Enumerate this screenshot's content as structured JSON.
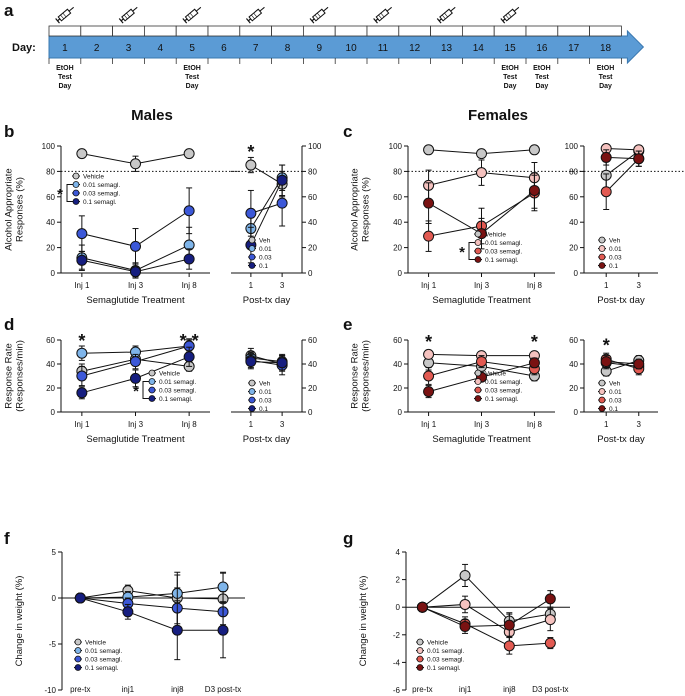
{
  "titles": {
    "males": "Males",
    "females": "Females"
  },
  "timeline": {
    "panel": "a",
    "label": "Day:",
    "days": [
      "1",
      "2",
      "3",
      "4",
      "5",
      "6",
      "7",
      "8",
      "9",
      "10",
      "11",
      "12",
      "13",
      "14",
      "15",
      "16",
      "17",
      "18"
    ],
    "injection_days": [
      "1",
      "3",
      "5",
      "7",
      "9",
      "11",
      "13",
      "15"
    ],
    "test_days": [
      "1",
      "5",
      "15",
      "16",
      "18"
    ],
    "test_label_lines": [
      "EtOH",
      "Test",
      "Day"
    ],
    "syringe_icon": "syringe-icon",
    "bar_color": "#5b9bd5",
    "bar_stroke": "#3a78b0"
  },
  "colors": {
    "male": [
      "#c8c8c8",
      "#7fb5ea",
      "#3c58d8",
      "#161e80"
    ],
    "female": [
      "#c8c8c8",
      "#f5c2bf",
      "#e25a52",
      "#7a1212"
    ]
  },
  "chart_data": [
    {
      "panel": "b",
      "type": "line",
      "sex": "male",
      "measure": "appropriate",
      "phase": "treatment",
      "ylabel_lines": [
        "Alcohol Appropriate",
        "Responses (%)"
      ],
      "xlabel": "Semaglutide Treatment",
      "categories": [
        "Inj 1",
        "Inj 3",
        "Inj 8"
      ],
      "ylim": [
        0,
        100
      ],
      "yticks": [
        "0",
        "20",
        "40",
        "60",
        "80",
        "100"
      ],
      "reference_line": 80,
      "significance": {
        "bracket": "*"
      },
      "legend": [
        "Vehicle",
        "0.01 semagl.",
        "0.03 semagl.",
        "0.1 semagl."
      ],
      "series": [
        {
          "values": [
            94,
            86,
            94
          ],
          "err": [
            3,
            6,
            3
          ]
        },
        {
          "values": [
            12,
            2,
            22
          ],
          "err": [
            10,
            6,
            14
          ]
        },
        {
          "values": [
            31,
            21,
            49
          ],
          "err": [
            14,
            14,
            18
          ]
        },
        {
          "values": [
            10,
            1,
            11
          ],
          "err": [
            7,
            4,
            8
          ]
        }
      ]
    },
    {
      "panel": "b2",
      "type": "line",
      "sex": "male",
      "measure": "appropriate",
      "phase": "post",
      "xlabel": "Post-tx day",
      "categories": [
        "1",
        "3"
      ],
      "ylim": [
        0,
        100
      ],
      "yticks": [
        "0",
        "20",
        "40",
        "60",
        "80",
        "100"
      ],
      "reference_line": 80,
      "markers": [
        {
          "text": "*",
          "at": "1",
          "y": 97,
          "color": "#3c58d8"
        }
      ],
      "legend": [
        "Veh",
        "0.01",
        "0.03",
        "0.1"
      ],
      "series": [
        {
          "values": [
            85,
            70
          ],
          "err": [
            6,
            10
          ]
        },
        {
          "values": [
            35,
            75
          ],
          "err": [
            14,
            10
          ]
        },
        {
          "values": [
            47,
            55
          ],
          "err": [
            18,
            18
          ]
        },
        {
          "values": [
            22,
            73
          ],
          "err": [
            14,
            12
          ]
        }
      ]
    },
    {
      "panel": "c",
      "type": "line",
      "sex": "female",
      "measure": "appropriate",
      "phase": "treatment",
      "ylabel_lines": [
        "Alcohol Appropriate",
        "Responses (%)"
      ],
      "xlabel": "Semaglutide Treatment",
      "categories": [
        "Inj 1",
        "Inj 3",
        "Inj 8"
      ],
      "ylim": [
        0,
        100
      ],
      "yticks": [
        "0",
        "20",
        "40",
        "60",
        "80",
        "100"
      ],
      "reference_line": 80,
      "significance": {
        "bracket": "*"
      },
      "legend": [
        "Vehicle",
        "0.01 semagl.",
        "0.03 semagl.",
        "0.1 semagl."
      ],
      "series": [
        {
          "values": [
            97,
            94,
            97
          ],
          "err": [
            2,
            3,
            2
          ]
        },
        {
          "values": [
            69,
            79,
            75
          ],
          "err": [
            12,
            10,
            12
          ]
        },
        {
          "values": [
            29,
            37,
            63
          ],
          "err": [
            12,
            14,
            14
          ]
        },
        {
          "values": [
            55,
            31,
            65
          ],
          "err": [
            16,
            12,
            14
          ]
        }
      ]
    },
    {
      "panel": "c2",
      "type": "line",
      "sex": "female",
      "measure": "appropriate",
      "phase": "post",
      "xlabel": "Post-tx day",
      "categories": [
        "1",
        "3"
      ],
      "ylim": [
        0,
        100
      ],
      "yticks": [
        "0",
        "20",
        "40",
        "60",
        "80",
        "100"
      ],
      "reference_line": 80,
      "legend": [
        "Veh",
        "0.01",
        "0.03",
        "0.1"
      ],
      "series": [
        {
          "values": [
            77,
            96
          ],
          "err": [
            12,
            3
          ]
        },
        {
          "values": [
            98,
            97
          ],
          "err": [
            3,
            3
          ]
        },
        {
          "values": [
            64,
            90
          ],
          "err": [
            14,
            6
          ]
        },
        {
          "values": [
            91,
            90
          ],
          "err": [
            6,
            6
          ]
        }
      ]
    },
    {
      "panel": "d",
      "type": "line",
      "sex": "male",
      "measure": "rate",
      "phase": "treatment",
      "ylabel_lines": [
        "Response Rate",
        "(Responses/min)"
      ],
      "xlabel": "Semaglutide Treatment",
      "categories": [
        "Inj 1",
        "Inj 3",
        "Inj 8"
      ],
      "ylim": [
        0,
        60
      ],
      "yticks": [
        "0",
        "20",
        "40",
        "60"
      ],
      "significance": {
        "bracket": "*"
      },
      "markers": [
        {
          "text": "*",
          "at": "Inj 1",
          "y": 61,
          "color": "#161e80"
        },
        {
          "text": "*",
          "at": "Inj 8",
          "y": 61,
          "color": "#7fb5ea",
          "dx": -6
        },
        {
          "text": "*",
          "at": "Inj 8",
          "y": 61,
          "color": "#3c58d8",
          "dx": 6
        }
      ],
      "legend": [
        "Vehicle",
        "0.01 semagl.",
        "0.03 semagl.",
        "0.1 semagl."
      ],
      "series": [
        {
          "values": [
            34,
            44,
            38
          ],
          "err": [
            6,
            5,
            4
          ]
        },
        {
          "values": [
            49,
            50,
            55
          ],
          "err": [
            6,
            5,
            5
          ]
        },
        {
          "values": [
            30,
            42,
            55
          ],
          "err": [
            8,
            6,
            6
          ]
        },
        {
          "values": [
            16,
            28,
            46
          ],
          "err": [
            5,
            7,
            8
          ]
        }
      ]
    },
    {
      "panel": "d2",
      "type": "line",
      "sex": "male",
      "measure": "rate",
      "phase": "post",
      "xlabel": "Post-tx day",
      "categories": [
        "1",
        "3"
      ],
      "ylim": [
        0,
        60
      ],
      "yticks": [
        "0",
        "20",
        "40",
        "60"
      ],
      "legend": [
        "Veh",
        "0.01",
        "0.03",
        "0.1"
      ],
      "series": [
        {
          "values": [
            47,
            40
          ],
          "err": [
            6,
            6
          ]
        },
        {
          "values": [
            45,
            42
          ],
          "err": [
            5,
            6
          ]
        },
        {
          "values": [
            43,
            39
          ],
          "err": [
            6,
            8
          ]
        },
        {
          "values": [
            42,
            41
          ],
          "err": [
            6,
            6
          ]
        }
      ]
    },
    {
      "panel": "e",
      "type": "line",
      "sex": "female",
      "measure": "rate",
      "phase": "treatment",
      "ylabel_lines": [
        "Response Rate",
        "(Responses/min)"
      ],
      "xlabel": "Semaglutide Treatment",
      "categories": [
        "Inj 1",
        "Inj 3",
        "Inj 8"
      ],
      "ylim": [
        0,
        60
      ],
      "yticks": [
        "0",
        "20",
        "40",
        "60"
      ],
      "markers": [
        {
          "text": "*",
          "at": "Inj 1",
          "y": 60,
          "color": "#7a1212"
        },
        {
          "text": "*",
          "at": "Inj 8",
          "y": 60,
          "color": "#f5c2bf"
        }
      ],
      "legend": [
        "Vehicle",
        "0.01 semagl.",
        "0.03 semagl.",
        "0.1 semagl."
      ],
      "series": [
        {
          "values": [
            41,
            38,
            30
          ],
          "err": [
            6,
            4,
            4
          ]
        },
        {
          "values": [
            48,
            47,
            47
          ],
          "err": [
            3,
            3,
            3
          ]
        },
        {
          "values": [
            30,
            42,
            36
          ],
          "err": [
            7,
            5,
            5
          ]
        },
        {
          "values": [
            17,
            29,
            41
          ],
          "err": [
            5,
            3,
            4
          ]
        }
      ]
    },
    {
      "panel": "e2",
      "type": "line",
      "sex": "female",
      "measure": "rate",
      "phase": "post",
      "xlabel": "Post-tx day",
      "categories": [
        "1",
        "3"
      ],
      "ylim": [
        0,
        60
      ],
      "yticks": [
        "0",
        "20",
        "40",
        "60"
      ],
      "markers": [
        {
          "text": "*",
          "at": "1",
          "y": 57,
          "color": "#e25a52"
        }
      ],
      "legend": [
        "Veh",
        "0.01",
        "0.03",
        "0.1"
      ],
      "series": [
        {
          "values": [
            34,
            43
          ],
          "err": [
            4,
            4
          ]
        },
        {
          "values": [
            41,
            38
          ],
          "err": [
            5,
            5
          ]
        },
        {
          "values": [
            44,
            36
          ],
          "err": [
            5,
            5
          ]
        },
        {
          "values": [
            42,
            40
          ],
          "err": [
            5,
            4
          ]
        }
      ]
    },
    {
      "panel": "f",
      "type": "line",
      "sex": "male",
      "measure": "weight",
      "ylabel_lines": [
        "Change in weight (%)"
      ],
      "categories": [
        "pre-tx",
        "inj1",
        "inj8",
        "D3 post-tx"
      ],
      "ylim": [
        -10,
        5
      ],
      "yticks": [
        "-10",
        "-5",
        "0",
        "5"
      ],
      "reference_line": 0,
      "legend": [
        "Vehicle",
        "0.01 semagl.",
        "0.03 semagl.",
        "0.1 semagl."
      ],
      "series": [
        {
          "values": [
            0,
            0.8,
            0.0,
            -0.1
          ],
          "err": [
            0,
            0.6,
            2.8,
            2.8
          ]
        },
        {
          "values": [
            0,
            0.1,
            0.5,
            1.2
          ],
          "err": [
            0,
            0.6,
            2.0,
            1.6
          ]
        },
        {
          "values": [
            0,
            -0.6,
            -1.1,
            -1.5
          ],
          "err": [
            0,
            0.6,
            2.2,
            2.2
          ]
        },
        {
          "values": [
            0,
            -1.5,
            -3.5,
            -3.5
          ],
          "err": [
            0,
            0.8,
            3.2,
            3.0
          ]
        }
      ]
    },
    {
      "panel": "g",
      "type": "line",
      "sex": "female",
      "measure": "weight",
      "ylabel_lines": [
        "Change in weight (%)"
      ],
      "categories": [
        "pre-tx",
        "inj1",
        "inj8",
        "D3 post-tx"
      ],
      "ylim": [
        -6,
        4
      ],
      "yticks": [
        "-6",
        "-4",
        "-2",
        "0",
        "2",
        "4"
      ],
      "reference_line": 0,
      "legend": [
        "Vehicle",
        "0.01 semagl.",
        "0.03 semagl.",
        "0.1 semagl."
      ],
      "series": [
        {
          "values": [
            0,
            2.3,
            -1.0,
            -0.5
          ],
          "err": [
            0,
            0.8,
            0.6,
            0.5
          ]
        },
        {
          "values": [
            0,
            0.2,
            -1.8,
            -0.9
          ],
          "err": [
            0,
            0.6,
            0.8,
            0.8
          ]
        },
        {
          "values": [
            0,
            -1.2,
            -2.8,
            -2.6
          ],
          "err": [
            0,
            0.5,
            0.6,
            0.4
          ]
        },
        {
          "values": [
            0,
            -1.4,
            -1.3,
            0.6
          ],
          "err": [
            0,
            0.5,
            0.8,
            0.6
          ]
        }
      ]
    }
  ]
}
